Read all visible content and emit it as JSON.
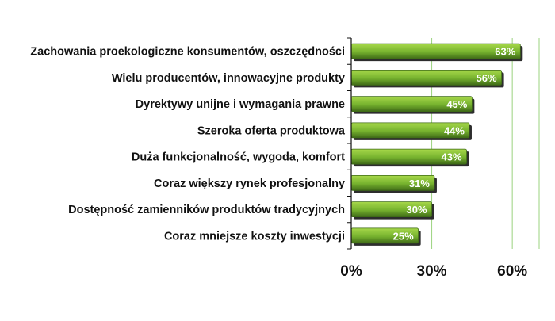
{
  "chart_data": {
    "type": "bar",
    "orientation": "horizontal",
    "categories": [
      "Zachowania proekologiczne konsumentów, oszczędności",
      "Wielu producentów, innowacyjne produkty",
      "Dyrektywy unijne i wymagania prawne",
      "Szeroka oferta produktowa",
      "Duża funkcjonalność, wygoda, komfort",
      "Coraz większy rynek profesjonalny",
      "Dostępność zamienników produktów tradycyjnych",
      "Coraz mniejsze koszty inwestycji"
    ],
    "values": [
      63,
      56,
      45,
      44,
      43,
      31,
      30,
      25
    ],
    "data_labels": [
      "63%",
      "56%",
      "45%",
      "44%",
      "43%",
      "31%",
      "30%",
      "25%"
    ],
    "x_ticks": [
      0,
      30,
      60
    ],
    "x_tick_labels": [
      "0%",
      "30%",
      "60%"
    ],
    "xlim": [
      0,
      70
    ],
    "xlabel": "",
    "ylabel": "",
    "title": "",
    "grid": "vertical",
    "legend": "none",
    "colors": {
      "bar_light": "#a7d84a",
      "bar_mid": "#76b22e",
      "bar_dark": "#3f6b17",
      "bar_shadow": "#2d2d2d",
      "gridline": "#9bd37f",
      "axis": "#111111",
      "text": "#111111",
      "data_label": "#ffffff"
    }
  }
}
